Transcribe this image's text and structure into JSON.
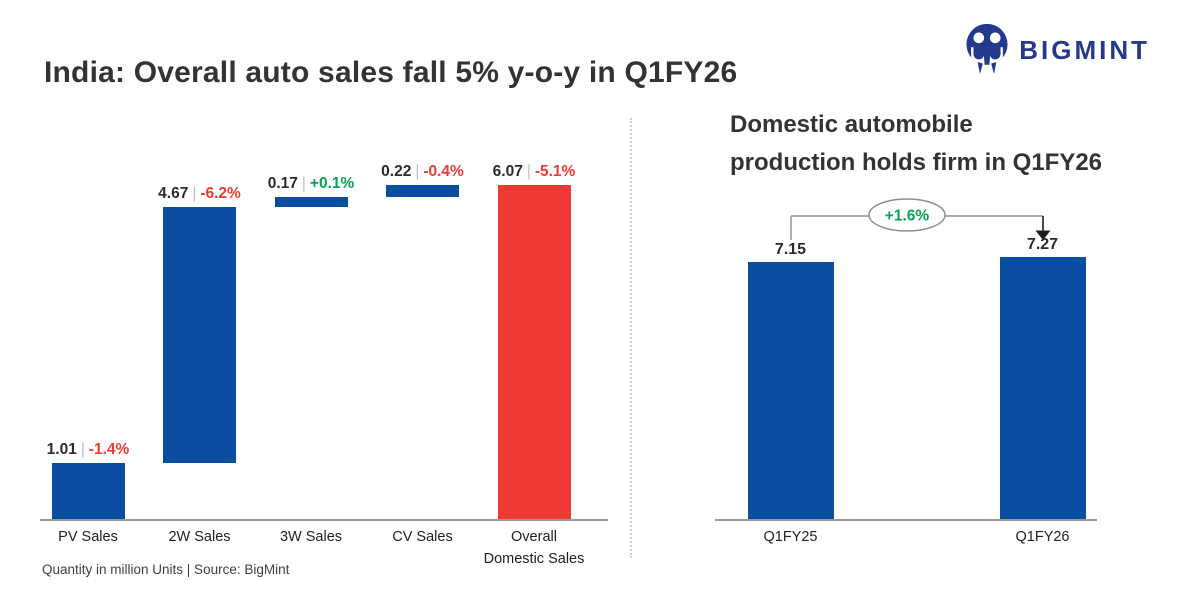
{
  "page": {
    "title": "India: Overall auto sales fall 5% y-o-y in Q1FY26",
    "footer": "Quantity in million Units  |  Source: BigMint",
    "brand": "BIGMINT"
  },
  "colors": {
    "blue": "#0b4da0",
    "red": "#ee3a32",
    "green": "#00a651",
    "navy": "#24398c",
    "axis": "#9b9b9b",
    "text": "#333333"
  },
  "right_panel": {
    "title_line1": "Domestic automobile",
    "title_line2": "production holds firm in Q1FY26"
  },
  "chart_data": [
    {
      "type": "bar",
      "subtype": "waterfall",
      "title": "India: Overall auto sales fall 5% y-o-y in Q1FY26",
      "unit": "million Units",
      "categories": [
        "PV Sales",
        "2W Sales",
        "3W Sales",
        "CV Sales",
        "Overall Domestic Sales"
      ],
      "tick_labels": [
        "PV Sales",
        "2W Sales",
        "3W Sales",
        "CV Sales",
        "Overall\nDomestic Sales"
      ],
      "values": [
        1.01,
        4.67,
        0.17,
        0.22,
        6.07
      ],
      "yoy_change": [
        "-1.4%",
        "-6.2%",
        "+0.1%",
        "-0.4%",
        "-5.1%"
      ],
      "bar_colors": [
        "blue",
        "blue",
        "blue",
        "blue",
        "red"
      ],
      "waterfall_base": [
        0,
        1.01,
        5.68,
        5.85,
        0
      ],
      "ylim": [
        0,
        6.9
      ],
      "grid": false,
      "legend": false
    },
    {
      "type": "bar",
      "title": "Domestic automobile production holds firm in Q1FY26",
      "unit": "million Units",
      "categories": [
        "Q1FY25",
        "Q1FY26"
      ],
      "values": [
        7.15,
        7.27
      ],
      "bar_colors": [
        "blue",
        "blue"
      ],
      "annotation": "+1.6%",
      "ylim": [
        0,
        9
      ],
      "grid": false,
      "legend": false
    }
  ]
}
